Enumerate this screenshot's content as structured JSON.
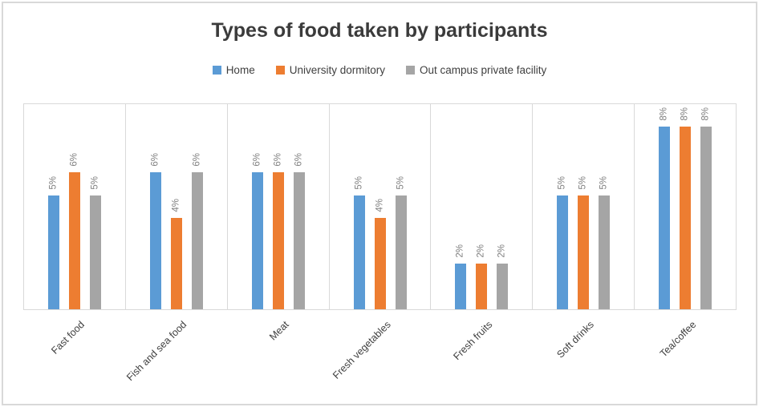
{
  "chart_data": {
    "type": "bar",
    "title": "Types of food taken by participants",
    "categories": [
      "Fast food",
      "Fish and sea food",
      "Meat",
      "Fresh vegetables",
      "Fresh fruits",
      "Soft drinks",
      "Tea/coffee"
    ],
    "series": [
      {
        "name": "Home",
        "color": "#5B9BD5",
        "values": [
          5,
          6,
          6,
          5,
          2,
          5,
          8
        ]
      },
      {
        "name": "University dormitory",
        "color": "#ED7D31",
        "values": [
          6,
          4,
          6,
          4,
          2,
          5,
          8
        ]
      },
      {
        "name": "Out campus private facility",
        "color": "#A5A5A5",
        "values": [
          5,
          6,
          6,
          5,
          2,
          5,
          8
        ]
      }
    ],
    "value_suffix": "%",
    "ylim": [
      0,
      9
    ],
    "legend_position": "top",
    "grid": "vertical-category-separators-only",
    "data_labels": "rotated-90-above-bars",
    "x_tick_rotation": -45
  },
  "colors": {
    "frame_border": "#d9d9d9",
    "plot_border": "#d9d9d9",
    "title_text": "#3b3b3b",
    "axis_text": "#3f3f3f",
    "data_label_text": "#808080",
    "background": "#ffffff"
  }
}
